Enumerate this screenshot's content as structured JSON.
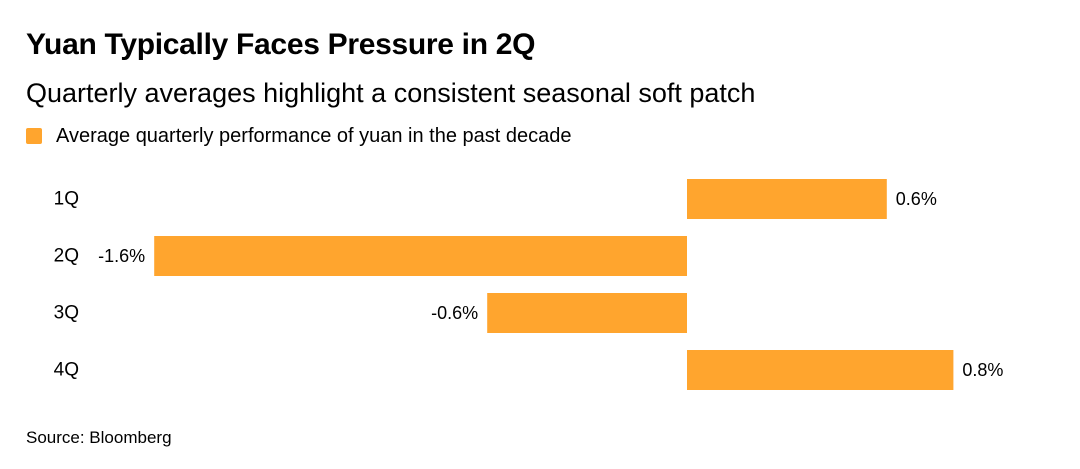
{
  "title": "Yuan Typically Faces Pressure in 2Q",
  "subtitle": "Quarterly averages highlight a consistent seasonal soft patch",
  "legend": {
    "label": "Average quarterly performance of yuan in the past decade"
  },
  "source": "Source: Bloomberg",
  "colors": {
    "bar": "#FFA52E",
    "text": "#000000"
  },
  "chart_data": {
    "type": "bar",
    "orientation": "horizontal",
    "categories": [
      "1Q",
      "2Q",
      "3Q",
      "4Q"
    ],
    "values": [
      0.6,
      -1.6,
      -0.6,
      0.8
    ],
    "value_labels": [
      "0.6%",
      "-1.6%",
      "-0.6%",
      "0.8%"
    ],
    "series_name": "Average quarterly performance of yuan in the past decade",
    "unit": "%",
    "xlim": [
      -1.6,
      0.8
    ],
    "grid": false,
    "title": "Yuan Typically Faces Pressure in 2Q",
    "subtitle": "Quarterly averages highlight a consistent seasonal soft patch",
    "legend_position": "top-left"
  }
}
